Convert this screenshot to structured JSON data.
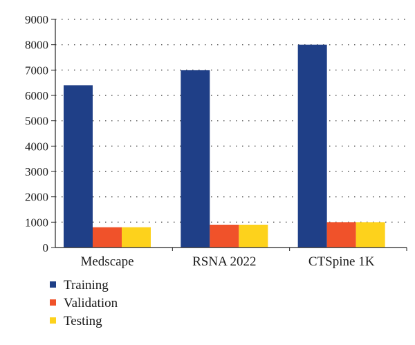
{
  "chart_data": {
    "type": "bar",
    "title": "",
    "xlabel": "",
    "ylabel": "",
    "categories": [
      "Medscape",
      "RSNA 2022",
      "CTSpine 1K"
    ],
    "series": [
      {
        "name": "Training",
        "values": [
          6400,
          7000,
          8000
        ],
        "color": "#1f3f87"
      },
      {
        "name": "Validation",
        "values": [
          800,
          900,
          1000
        ],
        "color": "#f0522a"
      },
      {
        "name": "Testing",
        "values": [
          800,
          900,
          1000
        ],
        "color": "#fdd21c"
      }
    ],
    "ylim": [
      0,
      9000
    ],
    "yticks": [
      "0",
      "1000",
      "2000",
      "3000",
      "4000",
      "5000",
      "6000",
      "7000",
      "8000",
      "9000"
    ],
    "grid": "horizontal dotted",
    "legend_position": "bottom-left"
  }
}
